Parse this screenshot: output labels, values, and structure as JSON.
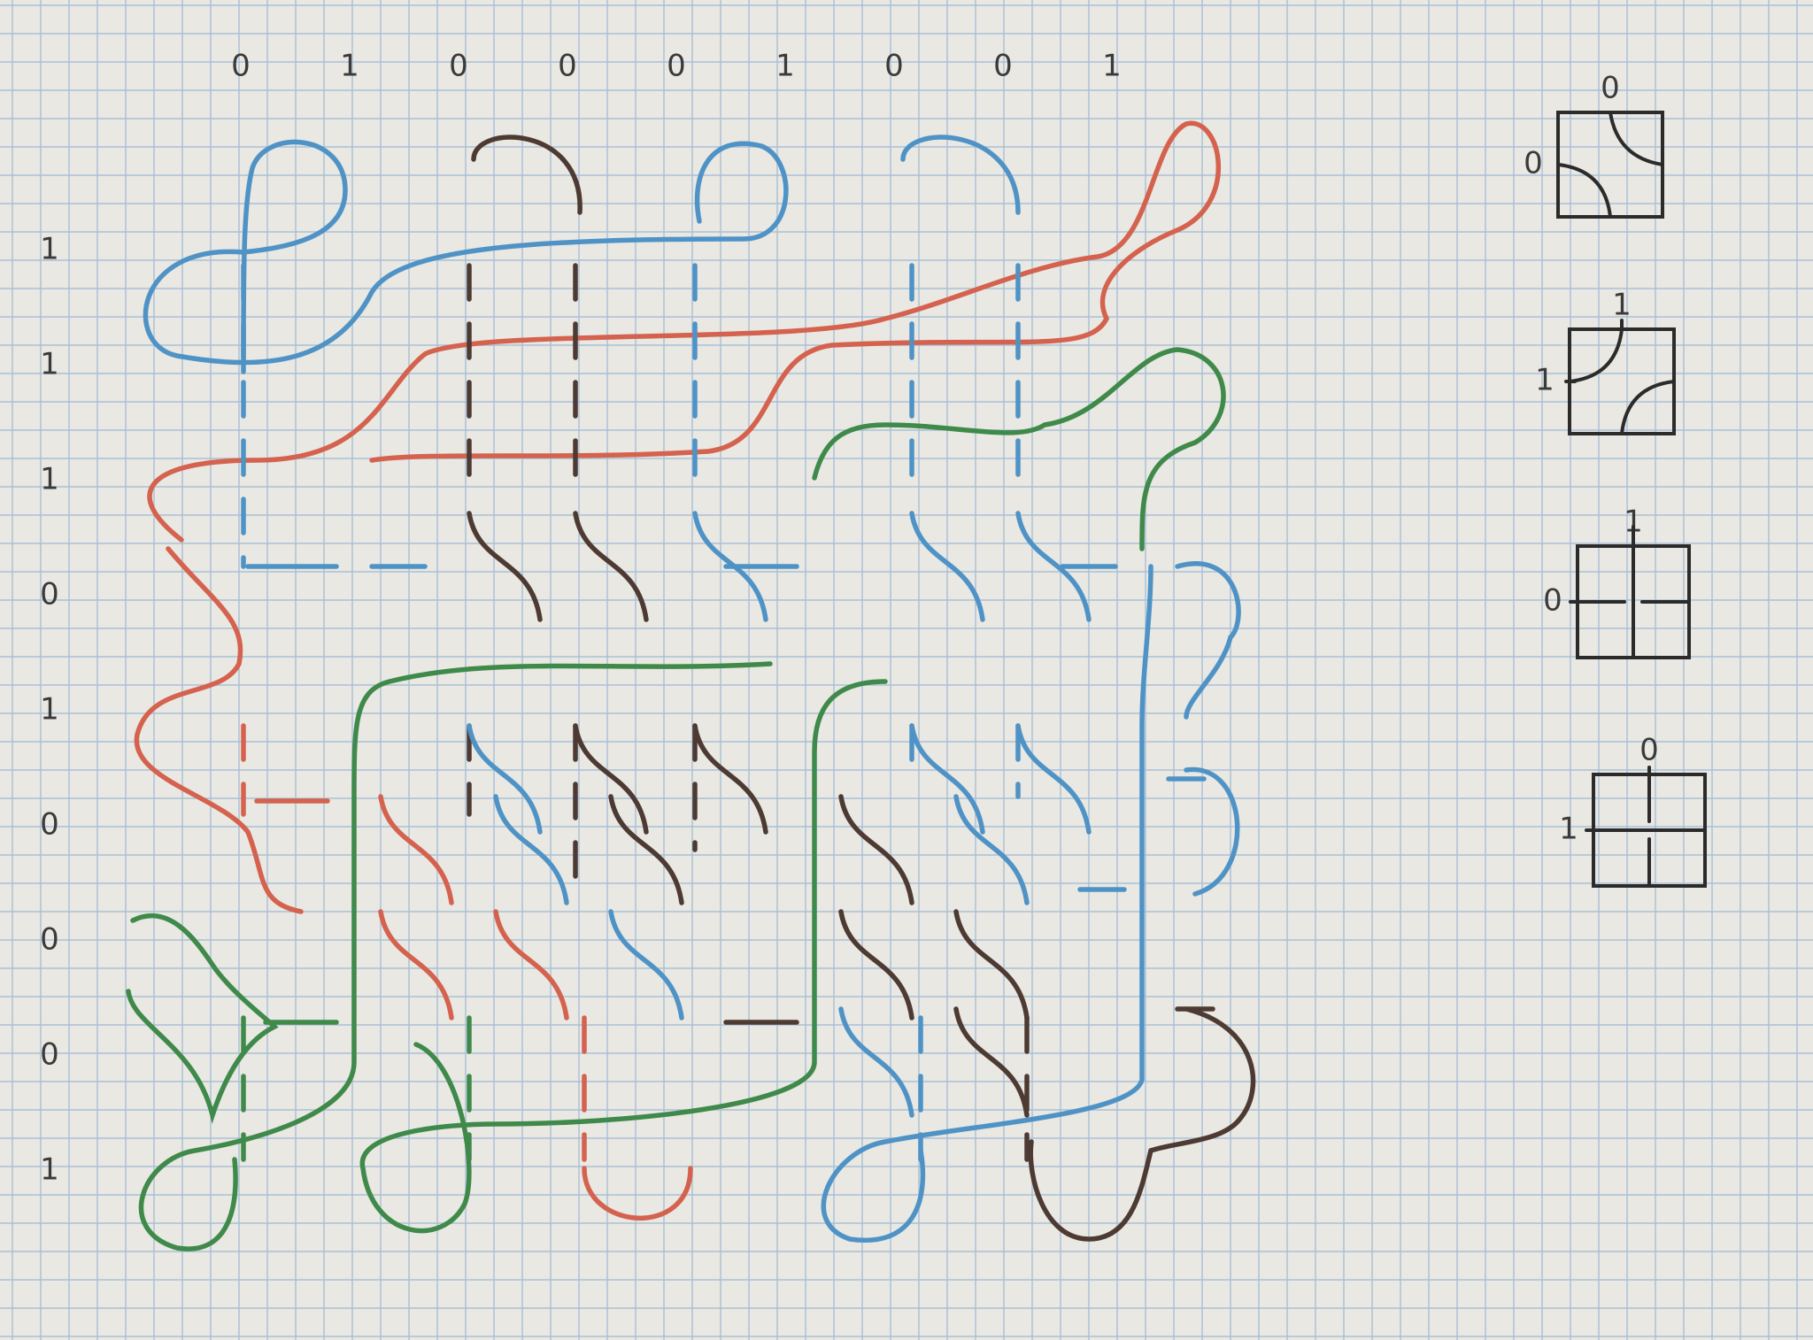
{
  "top_bits": [
    "0",
    "1",
    "0",
    "0",
    "0",
    "1",
    "0",
    "0",
    "1"
  ],
  "left_bits": [
    "1",
    "1",
    "1",
    "0",
    "1",
    "0",
    "0",
    "0",
    "1"
  ],
  "legend": [
    {
      "top": "0",
      "left": "0",
      "tile": "arcs"
    },
    {
      "top": "1",
      "left": "1",
      "tile": "arcs-flipped"
    },
    {
      "top": "1",
      "left": "0",
      "tile": "cross-gap-right"
    },
    {
      "top": "0",
      "left": "1",
      "tile": "cross-gap-top"
    }
  ],
  "colors": {
    "paper": "#e9e8e2",
    "grid": "#a9bfd6",
    "blue": "#4f93c6",
    "red": "#d4624e",
    "green": "#3f8a4a",
    "brown": "#4d3a33",
    "pencil": "#2b2b2b"
  }
}
